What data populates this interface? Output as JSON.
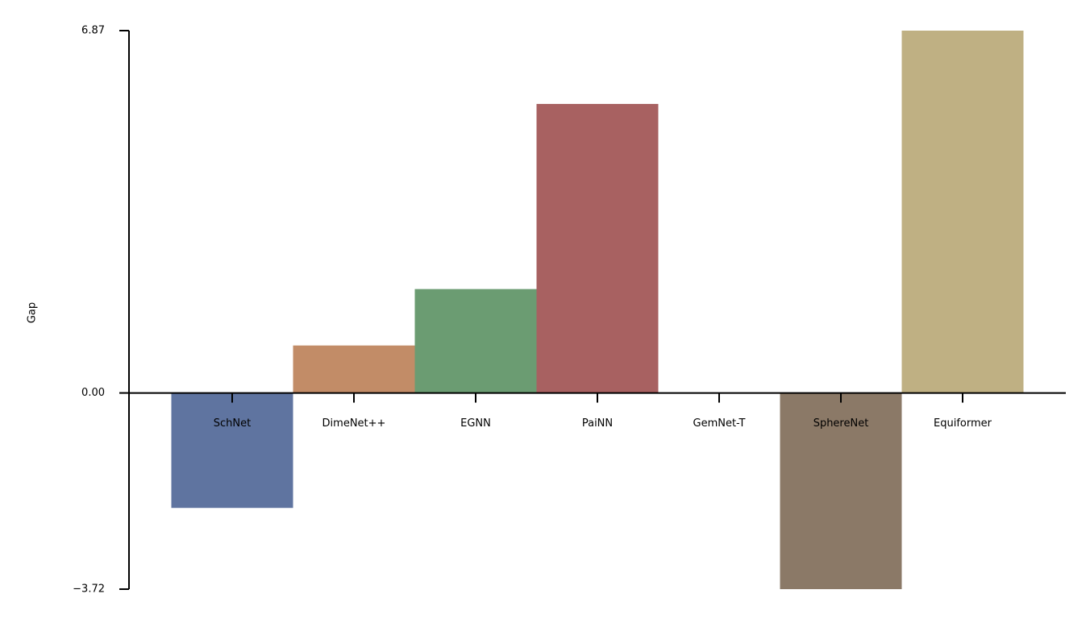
{
  "chart_data": {
    "type": "bar",
    "ylabel": "Gap",
    "categories": [
      "SchNet",
      "DimeNet++",
      "EGNN",
      "PaiNN",
      "GemNet-T",
      "SphereNet",
      "Equiformer"
    ],
    "values": [
      -2.18,
      0.9,
      1.97,
      5.48,
      0,
      -3.72,
      6.87
    ],
    "colors": [
      "#5f74a0",
      "#c28c67",
      "#6b9c72",
      "#a86161",
      "#8a7fb0",
      "#8b7967",
      "#bfb083"
    ],
    "ylim": [
      -3.72,
      6.87
    ],
    "yticks": [
      {
        "value": -3.72,
        "label": "−3.72"
      },
      {
        "value": 0,
        "label": "0.00"
      },
      6.87
    ]
  }
}
